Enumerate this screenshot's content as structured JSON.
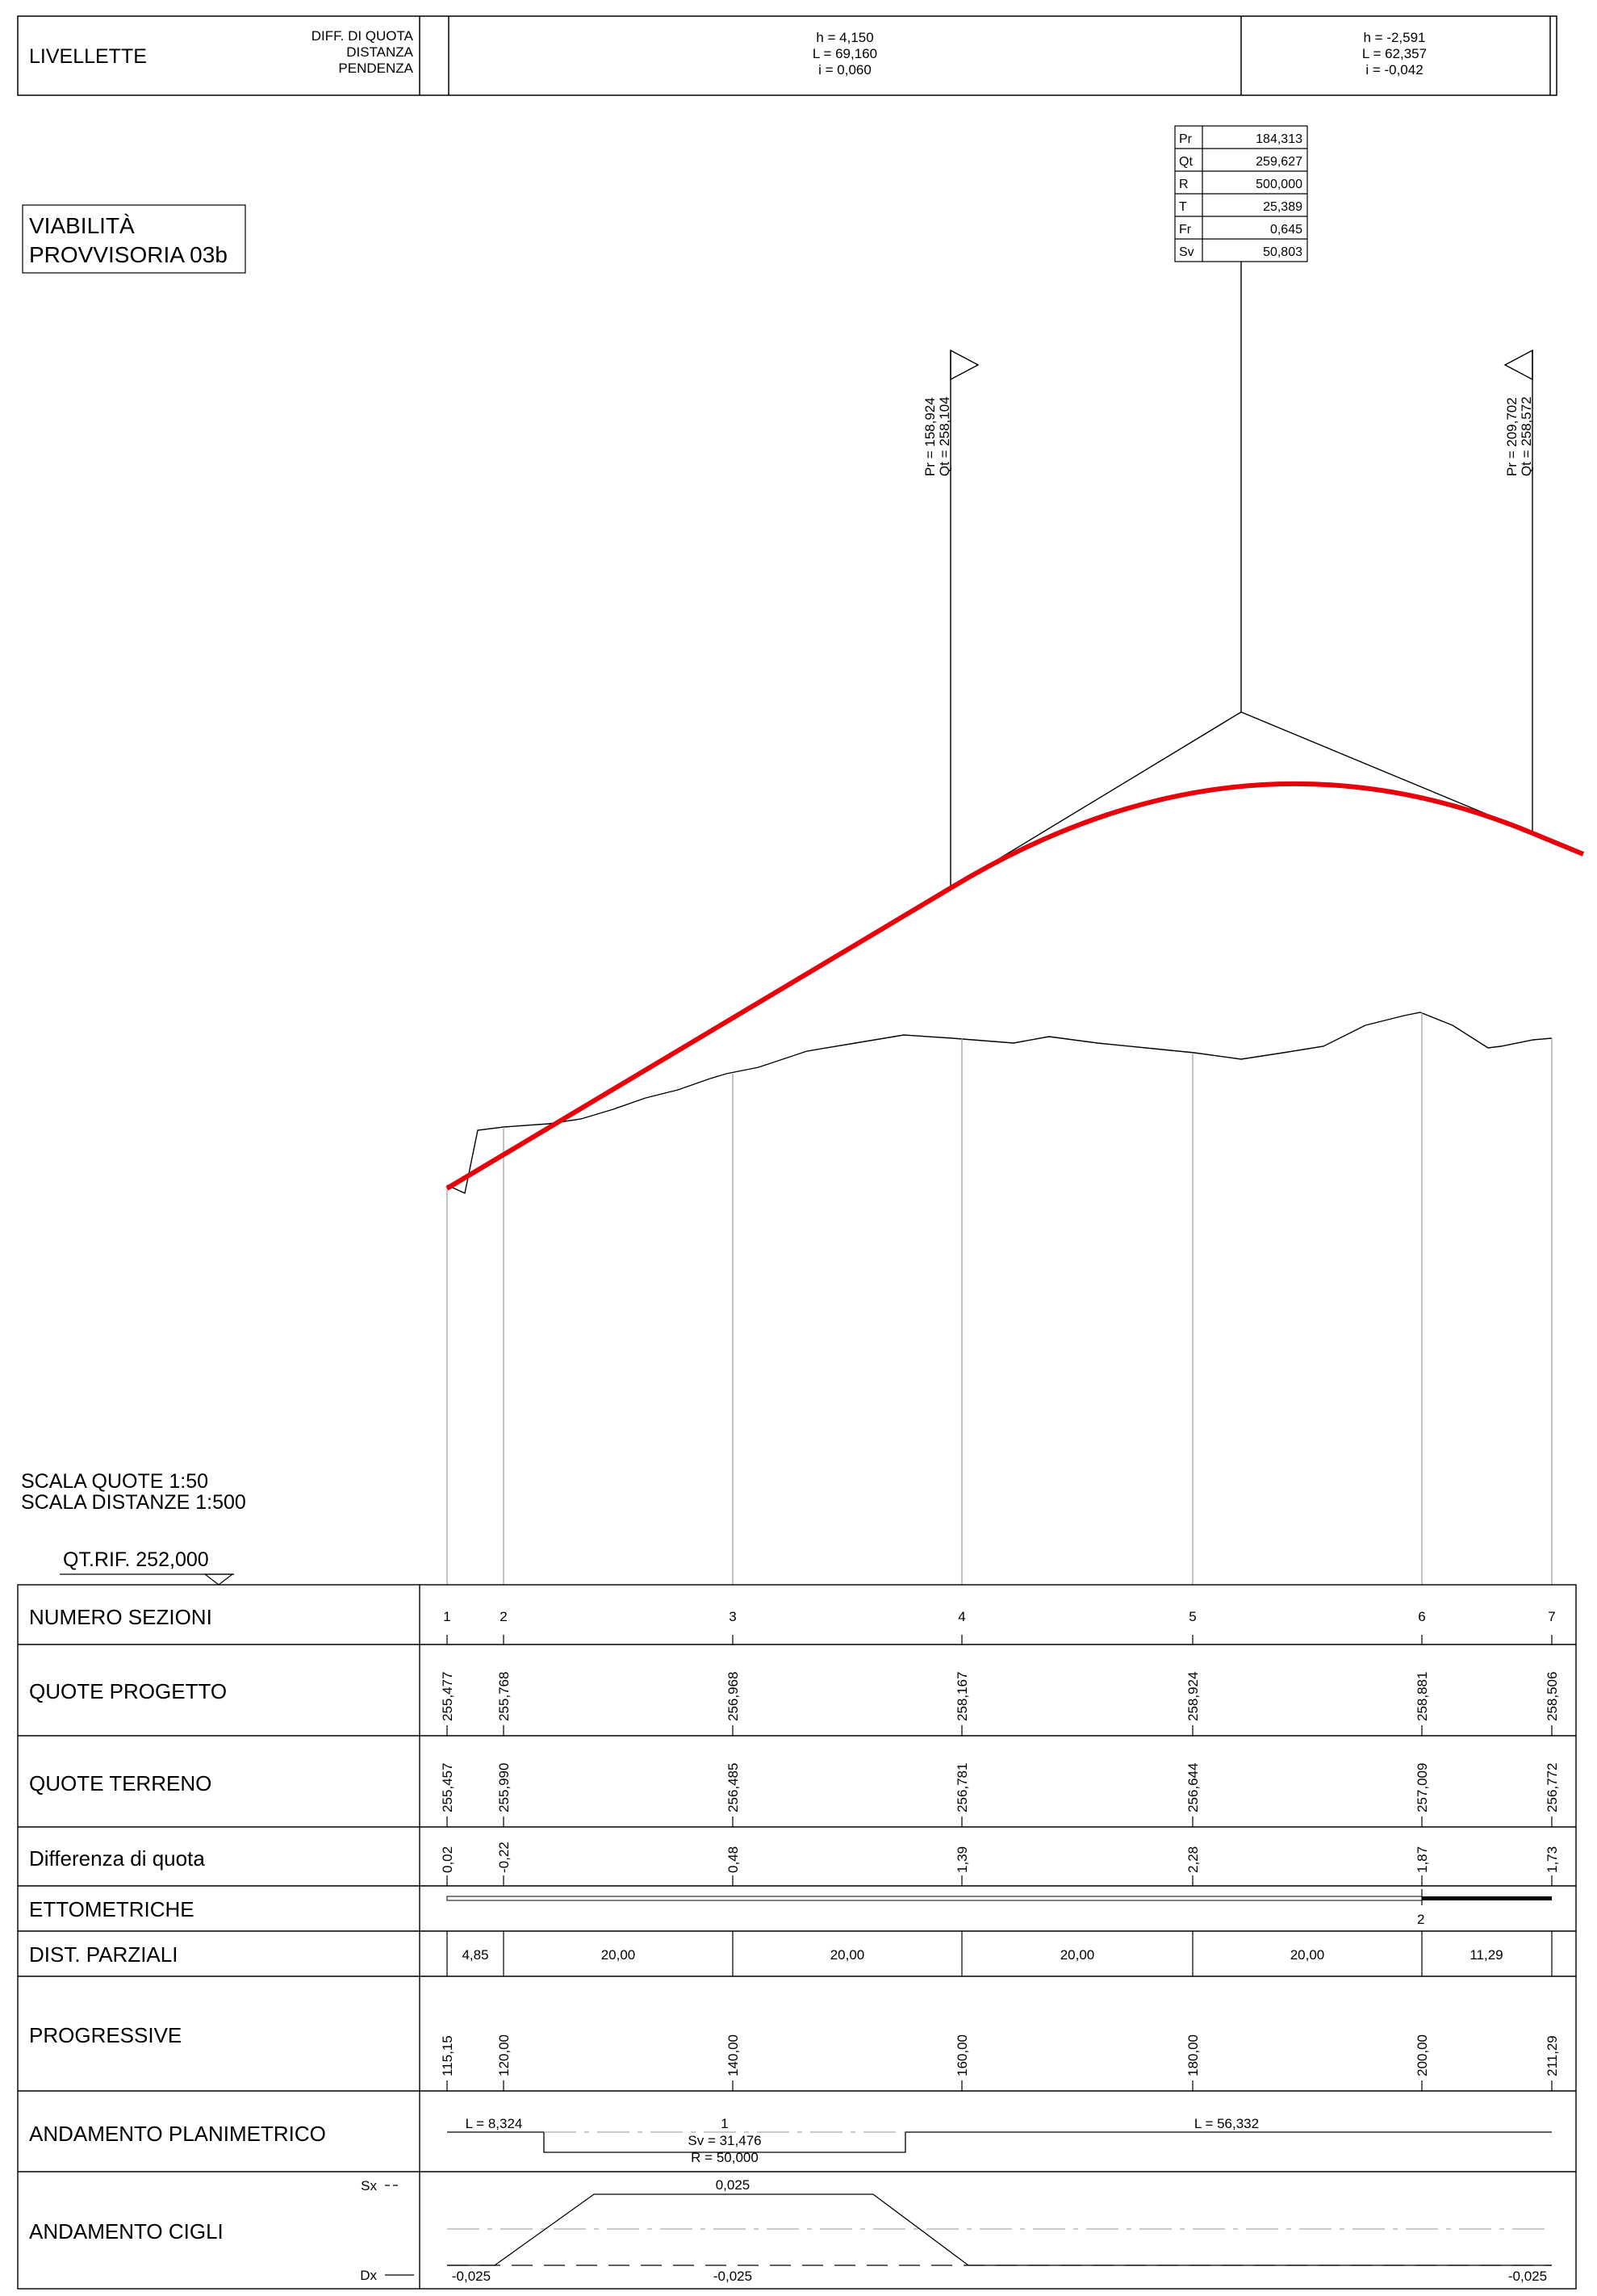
{
  "livellette": {
    "title": "LIVELLETTE",
    "labels": [
      "DIFF. DI QUOTA",
      "DISTANZA",
      "PENDENZA"
    ],
    "segments": [
      {
        "h": "h = 4,150",
        "L": "L = 69,160",
        "i": "i = 0,060"
      },
      {
        "h": "h = -2,591",
        "L": "L = 62,357",
        "i": "i = -0,042"
      }
    ]
  },
  "vertical_curve": {
    "rows": [
      {
        "key": "Pr",
        "value": "184,313"
      },
      {
        "key": "Qt",
        "value": "259,627"
      },
      {
        "key": "R",
        "value": "500,000"
      },
      {
        "key": "T",
        "value": "25,389"
      },
      {
        "key": "Fr",
        "value": "0,645"
      },
      {
        "key": "Sv",
        "value": "50,803"
      }
    ],
    "tangent_points": [
      {
        "pr": "Pr = 158,924",
        "qt": "Qt = 258,104"
      },
      {
        "pr": "Pr = 209,702",
        "qt": "Qt = 258,572"
      }
    ]
  },
  "title": {
    "line1": "VIABILITÀ",
    "line2": "PROVVISORIA 03b"
  },
  "scales": {
    "quote": "SCALA QUOTE 1:50",
    "distanze": "SCALA DISTANZE 1:500"
  },
  "reference": "QT.RIF. 252,000",
  "sections": [
    "1",
    "2",
    "3",
    "4",
    "5",
    "6",
    "7"
  ],
  "quote_progetto": [
    "255,477",
    "255,768",
    "256,968",
    "258,167",
    "258,924",
    "258,881",
    "258,506"
  ],
  "quote_terreno": [
    "255,457",
    "255,990",
    "256,485",
    "256,781",
    "256,644",
    "257,009",
    "256,772"
  ],
  "differenza_quota": [
    "0,02",
    "-0,22",
    "0,48",
    "1,39",
    "2,28",
    "1,87",
    "1,73"
  ],
  "ettometriche_label": "2",
  "dist_parziali": [
    "4,85",
    "20,00",
    "20,00",
    "20,00",
    "20,00",
    "11,29"
  ],
  "progressive": [
    "115,15",
    "120,00",
    "140,00",
    "160,00",
    "180,00",
    "200,00",
    "211,29"
  ],
  "planimetrico": {
    "left_L": "L = 8,324",
    "curve_num": "1",
    "sv": "Sv = 31,476",
    "r": "R = 50,000",
    "right_L": "L = 56,332"
  },
  "cigli": {
    "sx": "Sx",
    "dx": "Dx",
    "top_val": "0,025",
    "bottom_vals": [
      "-0,025",
      "-0,025",
      "-0,025"
    ]
  },
  "row_labels": {
    "numero": "NUMERO SEZIONI",
    "progetto": "QUOTE PROGETTO",
    "terreno": "QUOTE TERRENO",
    "differenza": "Differenza di quota",
    "ettometriche": "ETTOMETRICHE",
    "parziali": "DIST. PARZIALI",
    "progressive": "PROGRESSIVE",
    "planimetrico": "ANDAMENTO PLANIMETRICO",
    "cigli": "ANDAMENTO CIGLI"
  },
  "colors": {
    "project_line": "#e8000b",
    "line": "#000000",
    "grey": "#888888"
  }
}
